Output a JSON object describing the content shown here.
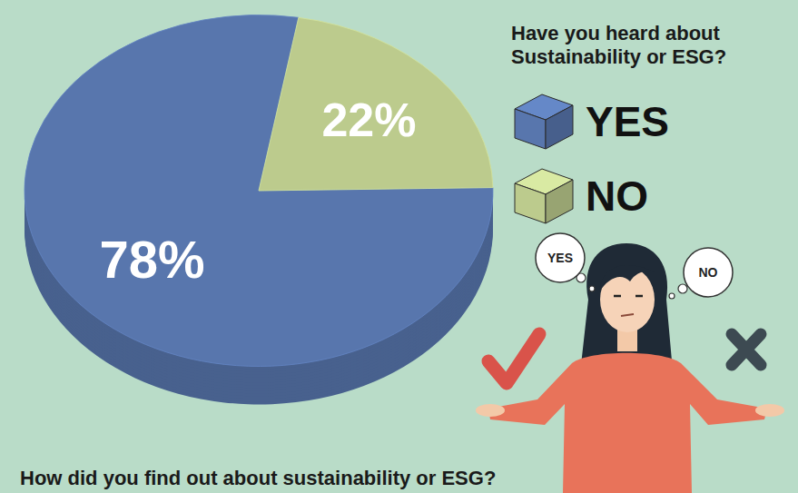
{
  "chart_data": {
    "type": "pie",
    "title": "Have you heard about Sustainability or ESG?",
    "categories": [
      "YES",
      "NO"
    ],
    "values": [
      78,
      22
    ],
    "value_labels": [
      "78%",
      "22%"
    ],
    "colors": [
      "#5876ad",
      "#bccb8d"
    ],
    "data_labels": true,
    "legend": "right",
    "annotations": [
      "YES",
      "NO",
      "How did you find out about sustainability or ESG?"
    ]
  }
}
